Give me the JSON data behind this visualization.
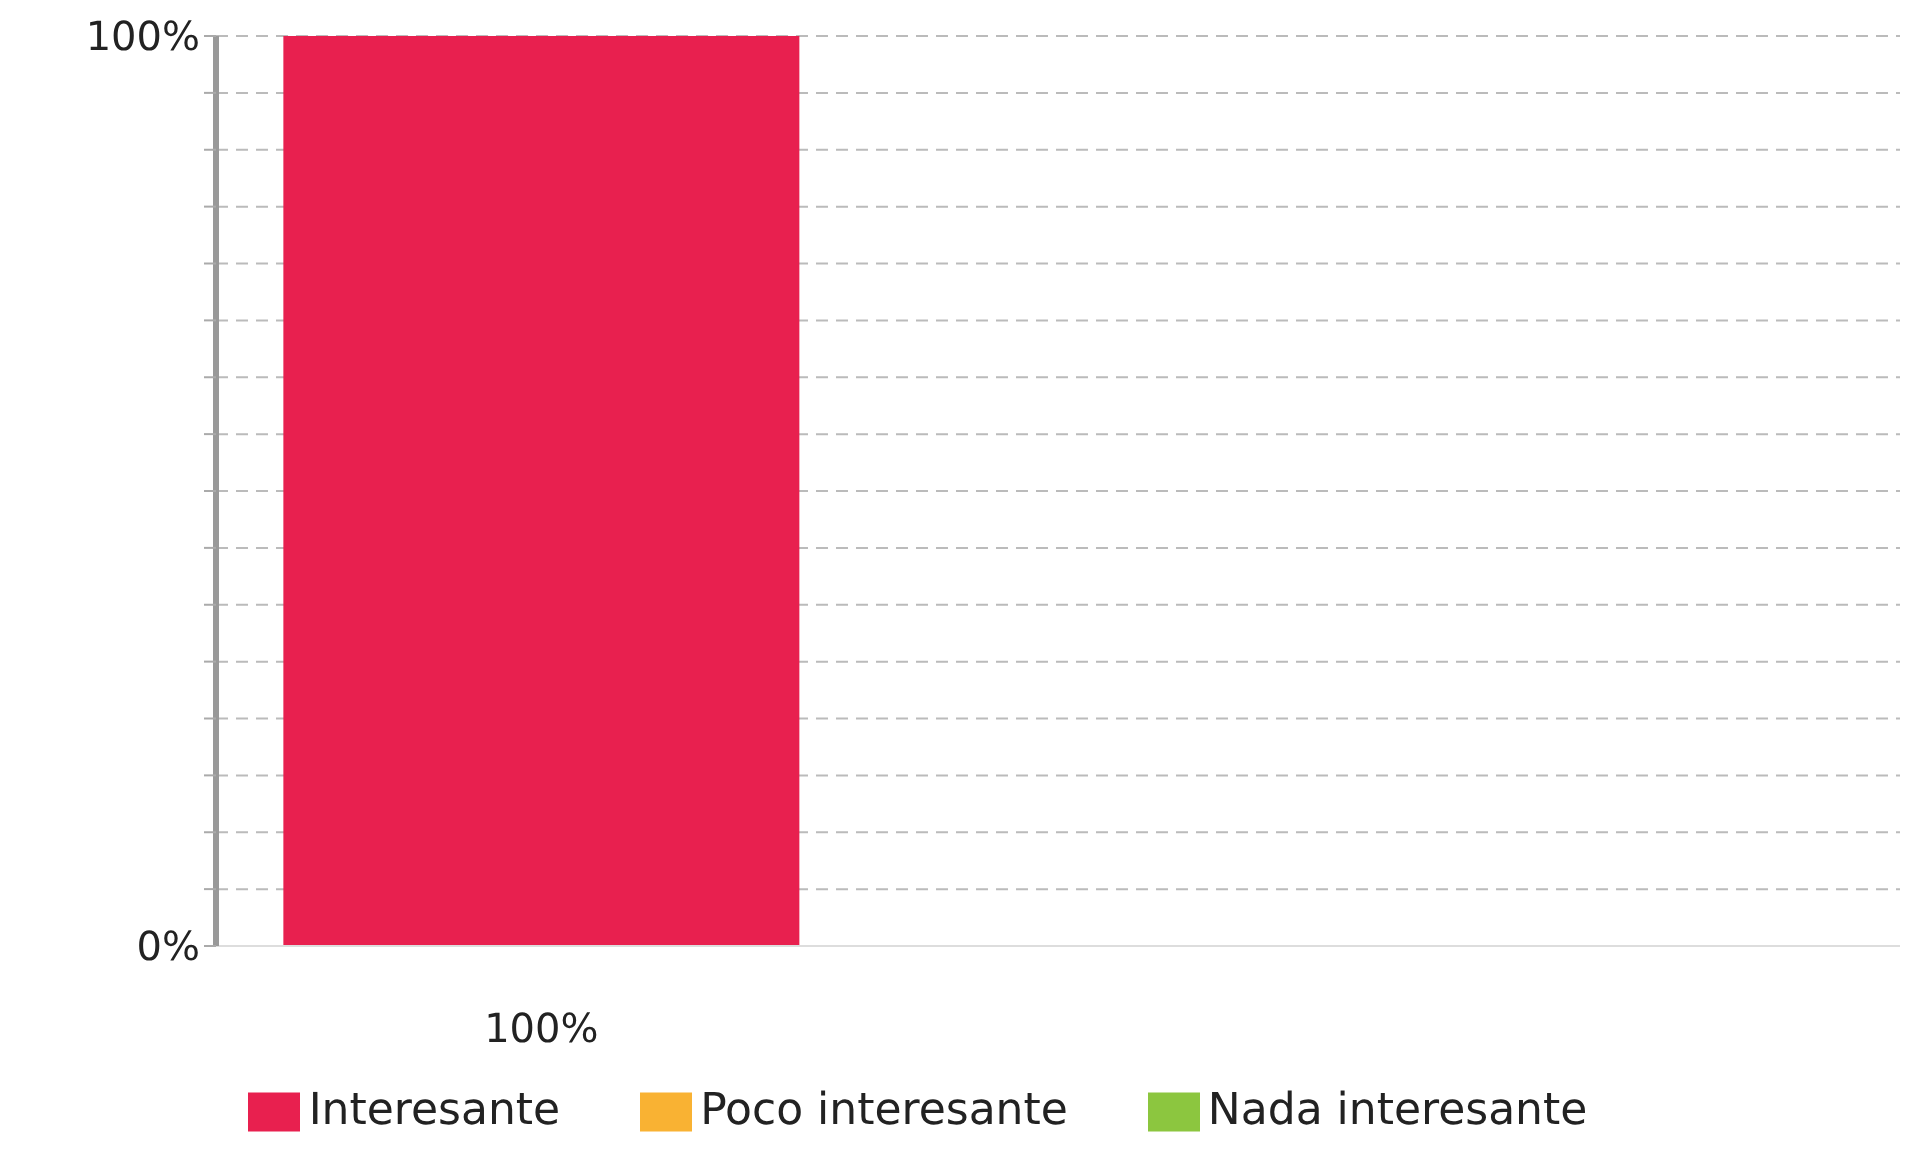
{
  "chart_data": {
    "type": "bar",
    "categories": [
      null
    ],
    "series": [
      {
        "name": "Interesante",
        "color": "#e8204f",
        "values": [
          100
        ],
        "value_labels": [
          "100%"
        ]
      },
      {
        "name": "Poco interesante",
        "color": "#f9b233",
        "values": [
          0
        ]
      },
      {
        "name": "Nada interesante",
        "color": "#8cc63f",
        "values": [
          0
        ]
      }
    ],
    "ylim": [
      0,
      100
    ],
    "yticks": [
      {
        "value": 0,
        "label": "0%"
      },
      {
        "value": 6.25,
        "label": null
      },
      {
        "value": 12.5,
        "label": null
      },
      {
        "value": 18.75,
        "label": null
      },
      {
        "value": 25,
        "label": null
      },
      {
        "value": 31.25,
        "label": null
      },
      {
        "value": 37.5,
        "label": null
      },
      {
        "value": 43.75,
        "label": null
      },
      {
        "value": 50,
        "label": null
      },
      {
        "value": 56.25,
        "label": null
      },
      {
        "value": 62.5,
        "label": null
      },
      {
        "value": 68.75,
        "label": null
      },
      {
        "value": 75,
        "label": null
      },
      {
        "value": 81.25,
        "label": null
      },
      {
        "value": 87.5,
        "label": null
      },
      {
        "value": 93.75,
        "label": null
      },
      {
        "value": 100,
        "label": "100%"
      }
    ],
    "grid": "y",
    "legend": "bottom"
  }
}
